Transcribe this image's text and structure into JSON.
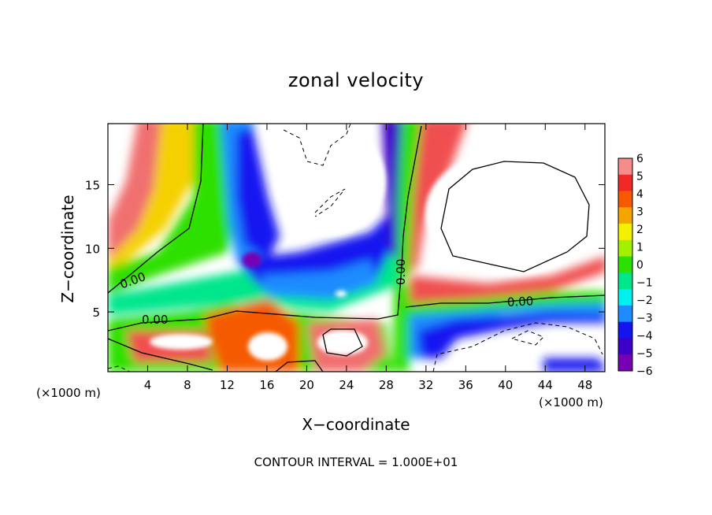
{
  "chart_data": {
    "type": "heatmap",
    "title": "zonal velocity",
    "xlabel": "X−coordinate",
    "ylabel": "Z−coordinate",
    "x_unit_label": "(×1000 m)",
    "x_ticks": [
      4,
      8,
      12,
      16,
      20,
      24,
      28,
      32,
      36,
      40,
      44,
      48
    ],
    "y_ticks": [
      5,
      10,
      15
    ],
    "xlim": [
      0,
      50
    ],
    "ylim": [
      0.3,
      19.8
    ],
    "colorbar": {
      "ticks": [
        "6",
        "5",
        "4",
        "3",
        "2",
        "1",
        "0",
        "−1",
        "−2",
        "−3",
        "−4",
        "−5",
        "−6"
      ],
      "colors": [
        "#f48c8c",
        "#f02828",
        "#f55a00",
        "#f5a500",
        "#f5f000",
        "#a5f000",
        "#2ee000",
        "#00e68c",
        "#00f0f0",
        "#1e8cff",
        "#1414f0",
        "#3c00c8",
        "#7800b4"
      ],
      "range": [
        -6,
        6
      ]
    },
    "contour_labels": [
      "0.00",
      "0.00",
      "0.00",
      "0.00"
    ],
    "footer": "CONTOUR INTERVAL =  1.000E+01"
  }
}
